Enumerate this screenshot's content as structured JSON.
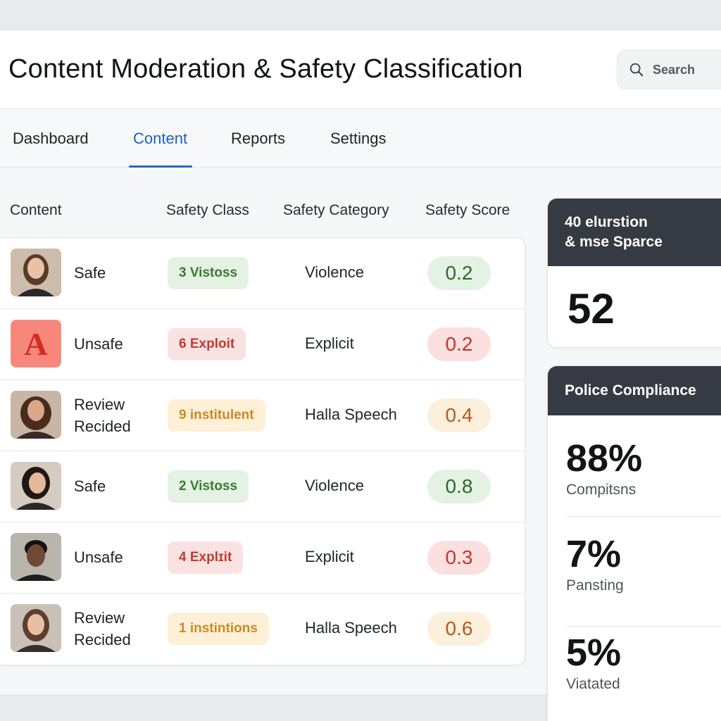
{
  "header": {
    "title": "Content Moderation & Safety Classification",
    "search_placeholder": "Search"
  },
  "tabs": [
    {
      "label": "Dashboard",
      "active": false
    },
    {
      "label": "Content",
      "active": true
    },
    {
      "label": "Reports",
      "active": false
    },
    {
      "label": "Settings",
      "active": false
    }
  ],
  "table": {
    "columns": [
      "Content",
      "Safety Class",
      "Safety Category",
      "Safety Score"
    ],
    "rows": [
      {
        "avatar": "photo-avatar",
        "status_lines": [
          "Safe"
        ],
        "class_label": "3 Vistoss",
        "tone": "green",
        "category": "Violence",
        "score": "0.2"
      },
      {
        "avatar": "letter-a-avatar",
        "avatar_letter": "A",
        "status_lines": [
          "Unsafe"
        ],
        "class_label": "6 Exploit",
        "tone": "red",
        "category": "Explicit",
        "score": "0.2"
      },
      {
        "avatar": "photo-avatar",
        "status_lines": [
          "Review",
          "Recided"
        ],
        "class_label": "9 institulent",
        "tone": "amber",
        "category": "Halla Speech",
        "score": "0.4"
      },
      {
        "avatar": "photo-avatar",
        "status_lines": [
          "Safe"
        ],
        "class_label": "2 Vistoss",
        "tone": "green",
        "category": "Violence",
        "score": "0.8"
      },
      {
        "avatar": "photo-avatar",
        "status_lines": [
          "Unsafe"
        ],
        "class_label": "4 Explɪit",
        "tone": "red",
        "category": "Explicit",
        "score": "0.3"
      },
      {
        "avatar": "photo-avatar",
        "status_lines": [
          "Review",
          "Recided"
        ],
        "class_label": "1 instintions",
        "tone": "amber",
        "category": "Halla Speech",
        "score": "0.6"
      }
    ]
  },
  "summary_card": {
    "heading_lines": [
      "40 elurstion",
      "& mse Sparce"
    ],
    "value": "52"
  },
  "compliance_card": {
    "heading": "Police Compliance",
    "metrics": [
      {
        "value": "88%",
        "label": "Compitsns"
      },
      {
        "value": "7%",
        "label": "Pansting"
      },
      {
        "value": "5%",
        "label": "Viatated"
      }
    ]
  },
  "colors": {
    "accent": "#2b68c9",
    "card_header": "#353a43",
    "green_bg": "#e3f2e3",
    "red_bg": "#fbe2e2",
    "amber_bg": "#fdf0d6"
  }
}
